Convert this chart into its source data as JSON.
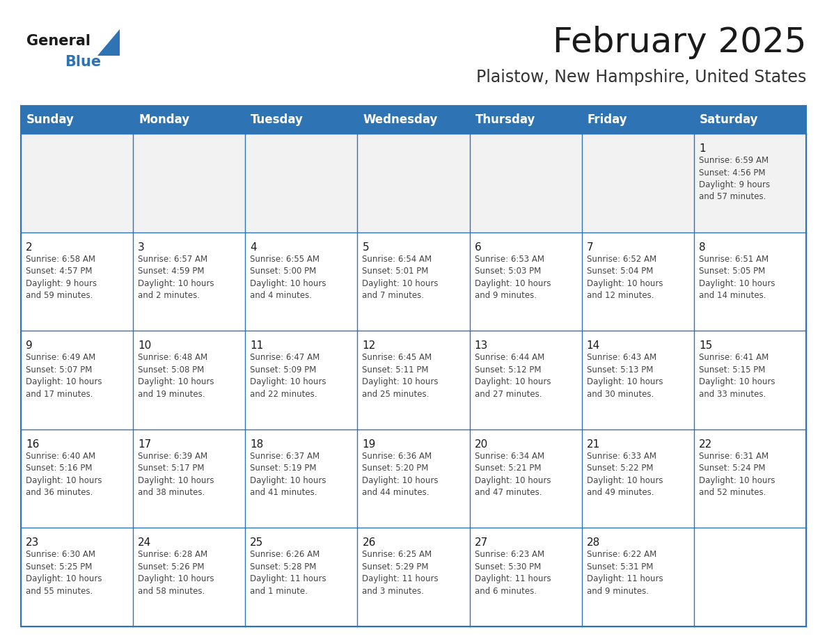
{
  "title": "February 2025",
  "subtitle": "Plaistow, New Hampshire, United States",
  "header_color": "#2E74B5",
  "header_text_color": "#FFFFFF",
  "cell_bg_color": "#FFFFFF",
  "row0_bg_color": "#F2F2F2",
  "border_color": "#2E74B5",
  "grid_line_color": "#2E74B5",
  "day_names": [
    "Sunday",
    "Monday",
    "Tuesday",
    "Wednesday",
    "Thursday",
    "Friday",
    "Saturday"
  ],
  "title_color": "#1A1A1A",
  "subtitle_color": "#333333",
  "day_num_color": "#1A1A1A",
  "info_color": "#444444",
  "logo_general_color": "#1A1A1A",
  "logo_blue_color": "#2E74B5",
  "weeks": [
    [
      {
        "day": "",
        "info": ""
      },
      {
        "day": "",
        "info": ""
      },
      {
        "day": "",
        "info": ""
      },
      {
        "day": "",
        "info": ""
      },
      {
        "day": "",
        "info": ""
      },
      {
        "day": "",
        "info": ""
      },
      {
        "day": "1",
        "info": "Sunrise: 6:59 AM\nSunset: 4:56 PM\nDaylight: 9 hours\nand 57 minutes."
      }
    ],
    [
      {
        "day": "2",
        "info": "Sunrise: 6:58 AM\nSunset: 4:57 PM\nDaylight: 9 hours\nand 59 minutes."
      },
      {
        "day": "3",
        "info": "Sunrise: 6:57 AM\nSunset: 4:59 PM\nDaylight: 10 hours\nand 2 minutes."
      },
      {
        "day": "4",
        "info": "Sunrise: 6:55 AM\nSunset: 5:00 PM\nDaylight: 10 hours\nand 4 minutes."
      },
      {
        "day": "5",
        "info": "Sunrise: 6:54 AM\nSunset: 5:01 PM\nDaylight: 10 hours\nand 7 minutes."
      },
      {
        "day": "6",
        "info": "Sunrise: 6:53 AM\nSunset: 5:03 PM\nDaylight: 10 hours\nand 9 minutes."
      },
      {
        "day": "7",
        "info": "Sunrise: 6:52 AM\nSunset: 5:04 PM\nDaylight: 10 hours\nand 12 minutes."
      },
      {
        "day": "8",
        "info": "Sunrise: 6:51 AM\nSunset: 5:05 PM\nDaylight: 10 hours\nand 14 minutes."
      }
    ],
    [
      {
        "day": "9",
        "info": "Sunrise: 6:49 AM\nSunset: 5:07 PM\nDaylight: 10 hours\nand 17 minutes."
      },
      {
        "day": "10",
        "info": "Sunrise: 6:48 AM\nSunset: 5:08 PM\nDaylight: 10 hours\nand 19 minutes."
      },
      {
        "day": "11",
        "info": "Sunrise: 6:47 AM\nSunset: 5:09 PM\nDaylight: 10 hours\nand 22 minutes."
      },
      {
        "day": "12",
        "info": "Sunrise: 6:45 AM\nSunset: 5:11 PM\nDaylight: 10 hours\nand 25 minutes."
      },
      {
        "day": "13",
        "info": "Sunrise: 6:44 AM\nSunset: 5:12 PM\nDaylight: 10 hours\nand 27 minutes."
      },
      {
        "day": "14",
        "info": "Sunrise: 6:43 AM\nSunset: 5:13 PM\nDaylight: 10 hours\nand 30 minutes."
      },
      {
        "day": "15",
        "info": "Sunrise: 6:41 AM\nSunset: 5:15 PM\nDaylight: 10 hours\nand 33 minutes."
      }
    ],
    [
      {
        "day": "16",
        "info": "Sunrise: 6:40 AM\nSunset: 5:16 PM\nDaylight: 10 hours\nand 36 minutes."
      },
      {
        "day": "17",
        "info": "Sunrise: 6:39 AM\nSunset: 5:17 PM\nDaylight: 10 hours\nand 38 minutes."
      },
      {
        "day": "18",
        "info": "Sunrise: 6:37 AM\nSunset: 5:19 PM\nDaylight: 10 hours\nand 41 minutes."
      },
      {
        "day": "19",
        "info": "Sunrise: 6:36 AM\nSunset: 5:20 PM\nDaylight: 10 hours\nand 44 minutes."
      },
      {
        "day": "20",
        "info": "Sunrise: 6:34 AM\nSunset: 5:21 PM\nDaylight: 10 hours\nand 47 minutes."
      },
      {
        "day": "21",
        "info": "Sunrise: 6:33 AM\nSunset: 5:22 PM\nDaylight: 10 hours\nand 49 minutes."
      },
      {
        "day": "22",
        "info": "Sunrise: 6:31 AM\nSunset: 5:24 PM\nDaylight: 10 hours\nand 52 minutes."
      }
    ],
    [
      {
        "day": "23",
        "info": "Sunrise: 6:30 AM\nSunset: 5:25 PM\nDaylight: 10 hours\nand 55 minutes."
      },
      {
        "day": "24",
        "info": "Sunrise: 6:28 AM\nSunset: 5:26 PM\nDaylight: 10 hours\nand 58 minutes."
      },
      {
        "day": "25",
        "info": "Sunrise: 6:26 AM\nSunset: 5:28 PM\nDaylight: 11 hours\nand 1 minute."
      },
      {
        "day": "26",
        "info": "Sunrise: 6:25 AM\nSunset: 5:29 PM\nDaylight: 11 hours\nand 3 minutes."
      },
      {
        "day": "27",
        "info": "Sunrise: 6:23 AM\nSunset: 5:30 PM\nDaylight: 11 hours\nand 6 minutes."
      },
      {
        "day": "28",
        "info": "Sunrise: 6:22 AM\nSunset: 5:31 PM\nDaylight: 11 hours\nand 9 minutes."
      },
      {
        "day": "",
        "info": ""
      }
    ]
  ]
}
